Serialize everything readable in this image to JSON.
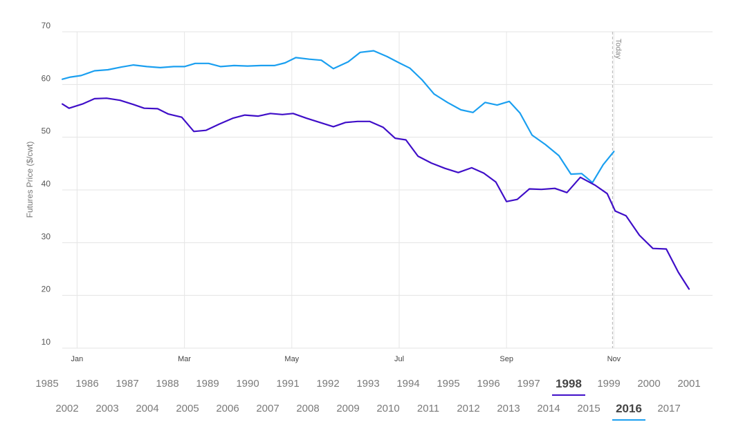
{
  "chart_data": {
    "type": "line",
    "ylabel": "Futures Price ($/cwt)",
    "xlabel": "",
    "ylim": [
      10,
      70
    ],
    "y_ticks": [
      10,
      20,
      30,
      40,
      50,
      60,
      70
    ],
    "x_tick_labels": [
      "Jan",
      "Mar",
      "May",
      "Jul",
      "Sep",
      "Nov"
    ],
    "x_tick_weeks": [
      1,
      9,
      17,
      25,
      33,
      41
    ],
    "x_range_weeks": [
      0,
      48
    ],
    "grid": true,
    "today_label": "Today",
    "today_week": 40.9,
    "series": [
      {
        "name": "2016",
        "color": "#1a9ff0",
        "points": [
          [
            -0.1,
            61.0
          ],
          [
            0.5,
            61.4
          ],
          [
            1.3,
            61.7
          ],
          [
            2.3,
            62.6
          ],
          [
            3.3,
            62.8
          ],
          [
            4.3,
            63.3
          ],
          [
            5.2,
            63.7
          ],
          [
            6.2,
            63.4
          ],
          [
            7.2,
            63.2
          ],
          [
            8.2,
            63.4
          ],
          [
            9.0,
            63.4
          ],
          [
            9.8,
            64.0
          ],
          [
            10.8,
            64.0
          ],
          [
            11.7,
            63.4
          ],
          [
            12.7,
            63.6
          ],
          [
            13.7,
            63.5
          ],
          [
            14.7,
            63.6
          ],
          [
            15.7,
            63.6
          ],
          [
            16.5,
            64.1
          ],
          [
            17.3,
            65.1
          ],
          [
            18.3,
            64.8
          ],
          [
            19.2,
            64.6
          ],
          [
            20.1,
            63.0
          ],
          [
            21.2,
            64.3
          ],
          [
            22.1,
            66.1
          ],
          [
            23.1,
            66.4
          ],
          [
            24.1,
            65.3
          ],
          [
            25.0,
            64.1
          ],
          [
            25.8,
            63.1
          ],
          [
            26.7,
            60.9
          ],
          [
            27.6,
            58.2
          ],
          [
            28.6,
            56.6
          ],
          [
            29.6,
            55.2
          ],
          [
            30.5,
            54.7
          ],
          [
            31.4,
            56.6
          ],
          [
            32.3,
            56.1
          ],
          [
            33.2,
            56.8
          ],
          [
            34.0,
            54.6
          ],
          [
            34.9,
            50.4
          ],
          [
            35.9,
            48.6
          ],
          [
            36.9,
            46.5
          ],
          [
            37.8,
            43.0
          ],
          [
            38.6,
            43.1
          ],
          [
            39.4,
            41.4
          ],
          [
            40.2,
            44.8
          ],
          [
            41.0,
            47.3
          ]
        ]
      },
      {
        "name": "1998",
        "color": "#3f0ec8",
        "points": [
          [
            -0.1,
            56.3
          ],
          [
            0.4,
            55.5
          ],
          [
            1.4,
            56.3
          ],
          [
            2.3,
            57.3
          ],
          [
            3.2,
            57.4
          ],
          [
            4.2,
            57.0
          ],
          [
            5.2,
            56.2
          ],
          [
            6.0,
            55.5
          ],
          [
            7.0,
            55.4
          ],
          [
            7.8,
            54.4
          ],
          [
            8.8,
            53.8
          ],
          [
            9.7,
            51.1
          ],
          [
            10.6,
            51.3
          ],
          [
            11.6,
            52.5
          ],
          [
            12.6,
            53.6
          ],
          [
            13.5,
            54.2
          ],
          [
            14.5,
            54.0
          ],
          [
            15.4,
            54.5
          ],
          [
            16.3,
            54.3
          ],
          [
            17.1,
            54.5
          ],
          [
            18.1,
            53.6
          ],
          [
            19.1,
            52.8
          ],
          [
            20.1,
            52.0
          ],
          [
            21.0,
            52.8
          ],
          [
            21.9,
            53.0
          ],
          [
            22.8,
            53.0
          ],
          [
            23.8,
            51.9
          ],
          [
            24.7,
            49.8
          ],
          [
            25.5,
            49.5
          ],
          [
            26.4,
            46.4
          ],
          [
            27.4,
            45.1
          ],
          [
            28.4,
            44.1
          ],
          [
            29.4,
            43.3
          ],
          [
            30.4,
            44.2
          ],
          [
            31.3,
            43.2
          ],
          [
            32.2,
            41.5
          ],
          [
            33.0,
            37.8
          ],
          [
            33.8,
            38.2
          ],
          [
            34.7,
            40.2
          ],
          [
            35.6,
            40.1
          ],
          [
            36.6,
            40.3
          ],
          [
            37.5,
            39.5
          ],
          [
            38.5,
            42.4
          ],
          [
            39.6,
            40.9
          ],
          [
            40.5,
            39.3
          ],
          [
            41.1,
            36.0
          ],
          [
            41.9,
            35.1
          ],
          [
            42.9,
            31.4
          ],
          [
            43.9,
            28.9
          ],
          [
            44.9,
            28.8
          ],
          [
            45.8,
            24.4
          ],
          [
            46.6,
            21.2
          ]
        ]
      }
    ]
  },
  "year_selector": {
    "row1": [
      "1985",
      "1986",
      "1987",
      "1988",
      "1989",
      "1990",
      "1991",
      "1992",
      "1993",
      "1994",
      "1995",
      "1996",
      "1997",
      "1998",
      "1999",
      "2000",
      "2001"
    ],
    "row2": [
      "2002",
      "2003",
      "2004",
      "2005",
      "2006",
      "2007",
      "2008",
      "2009",
      "2010",
      "2011",
      "2012",
      "2013",
      "2014",
      "2015",
      "2016",
      "2017"
    ],
    "selected": [
      "1998",
      "2016"
    ],
    "selected_colors": {
      "1998": "#3f0ec8",
      "2016": "#1a9ff0"
    }
  }
}
